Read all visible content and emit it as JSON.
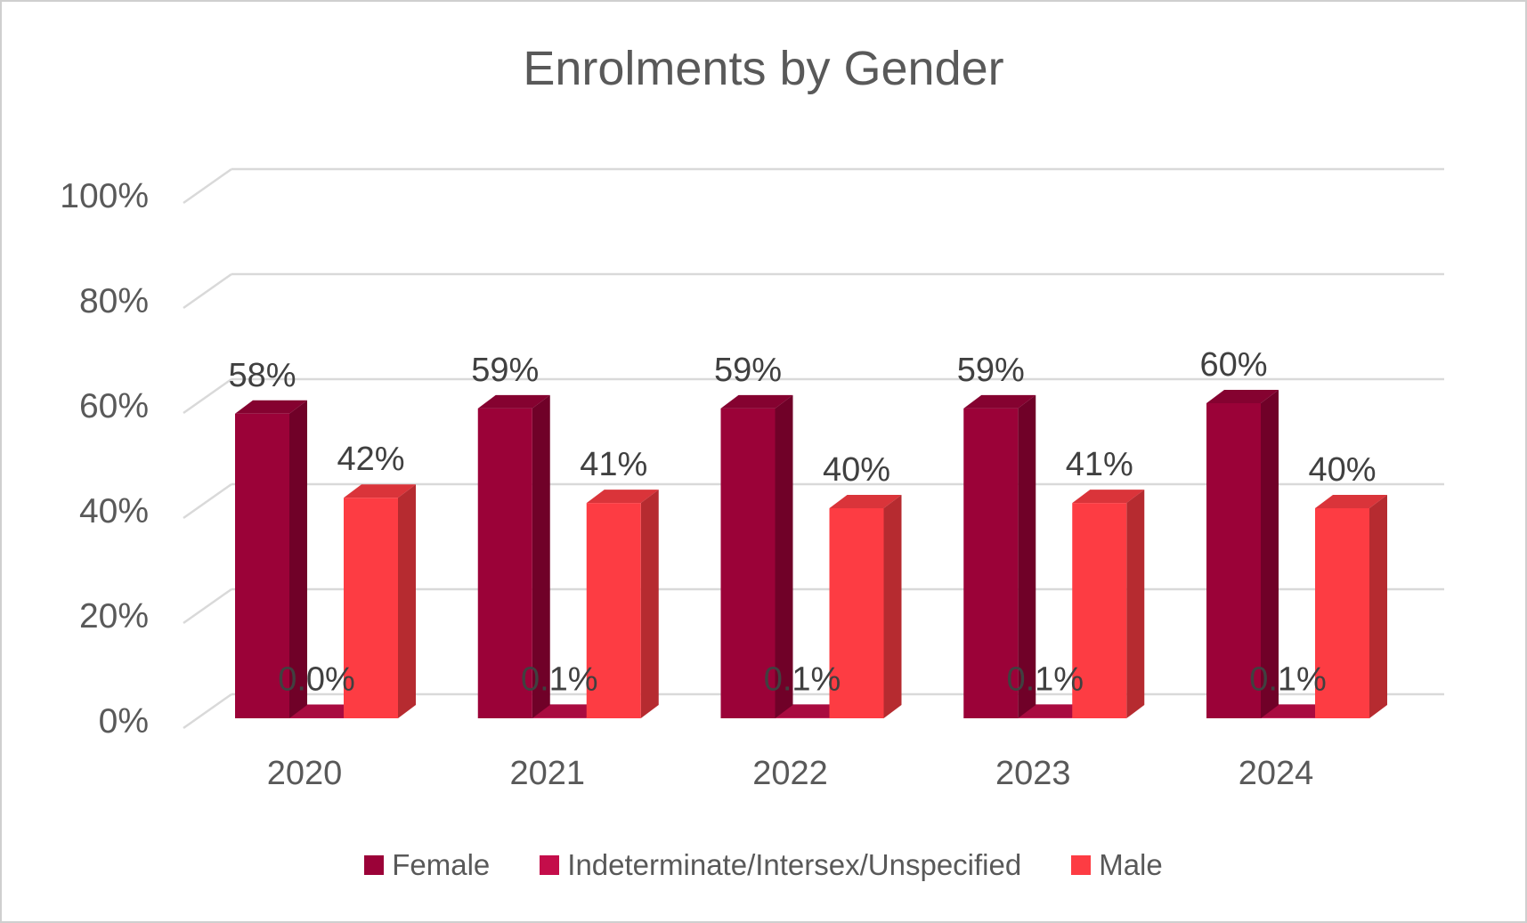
{
  "title": "Enrolments by Gender",
  "chart_data": {
    "type": "bar",
    "subtype": "3d-clustered-column",
    "title": "Enrolments by Gender",
    "categories": [
      "2020",
      "2021",
      "2022",
      "2023",
      "2024"
    ],
    "series": [
      {
        "name": "Female",
        "color": "#9B0238",
        "values": [
          58,
          59,
          59,
          59,
          60
        ],
        "labels": [
          "58%",
          "59%",
          "59%",
          "59%",
          "60%"
        ]
      },
      {
        "name": "Indeterminate/Intersex/Unspecified",
        "color": "#C40D4A",
        "values": [
          0.0,
          0.1,
          0.1,
          0.1,
          0.1
        ],
        "labels": [
          "0.0%",
          "0.1%",
          "0.1%",
          "0.1%",
          "0.1%"
        ]
      },
      {
        "name": "Male",
        "color": "#FD3C43",
        "values": [
          42,
          41,
          40,
          41,
          40
        ],
        "labels": [
          "42%",
          "41%",
          "40%",
          "41%",
          "40%"
        ]
      }
    ],
    "y_axis": {
      "min": 0,
      "max": 100,
      "step": 20,
      "tick_labels": [
        "0%",
        "20%",
        "40%",
        "60%",
        "80%",
        "100%"
      ]
    },
    "grid": true,
    "legend_position": "bottom",
    "colors": {
      "grid": "#D9D9D9",
      "title_text": "#595959",
      "axis_text": "#595959",
      "data_label_text": "#404040",
      "background": "#FFFFFF",
      "border": "#CFCFCF"
    }
  }
}
